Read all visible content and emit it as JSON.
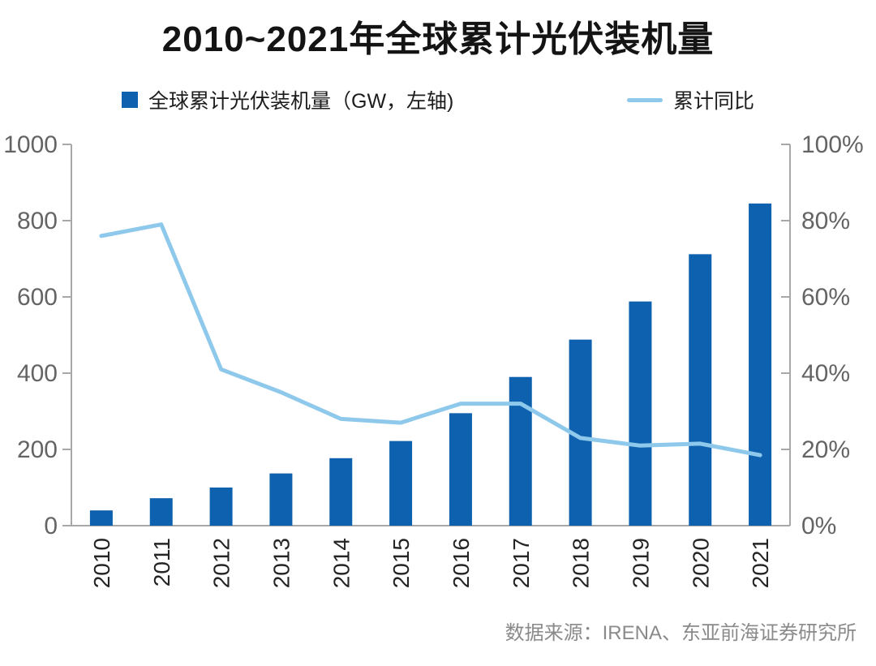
{
  "title": "2010~2021年全球累计光伏装机量",
  "legend": {
    "bars_label": "全球累计光伏装机量（GW，左轴)",
    "line_label": "累计同比"
  },
  "source": "数据来源：IRENA、东亚前海证券研究所",
  "colors": {
    "bar": "#0e61ae",
    "line": "#8ec9ec",
    "axis": "#a8a8a8",
    "axis_tick_label": "#646464",
    "x_label": "#242424",
    "title": "#141414",
    "source": "#8a8a8a"
  },
  "chart_data": {
    "type": "bar",
    "subtype": "bar+line combo, dual axis",
    "title": "2010~2021年全球累计光伏装机量",
    "categories": [
      "2010",
      "2011",
      "2012",
      "2013",
      "2014",
      "2015",
      "2016",
      "2017",
      "2018",
      "2019",
      "2020",
      "2021"
    ],
    "series": [
      {
        "name": "全球累计光伏装机量（GW，左轴)",
        "type": "bar",
        "axis": "left",
        "unit": "GW",
        "values": [
          40,
          72,
          100,
          137,
          177,
          222,
          295,
          390,
          488,
          588,
          712,
          845
        ]
      },
      {
        "name": "累计同比",
        "type": "line",
        "axis": "right",
        "unit": "%",
        "values": [
          76,
          79,
          41,
          35,
          28,
          27,
          32,
          32,
          23,
          21,
          21.5,
          18.5
        ]
      }
    ],
    "left_axis": {
      "min": 0,
      "max": 1000,
      "tick_values": [
        0,
        200,
        400,
        600,
        800,
        1000
      ],
      "tick_labels": [
        "0",
        "200",
        "400",
        "600",
        "800",
        "1000"
      ]
    },
    "right_axis": {
      "min": 0,
      "max": 100,
      "tick_values": [
        0,
        20,
        40,
        60,
        80,
        100
      ],
      "tick_labels": [
        "0%",
        "20%",
        "40%",
        "60%",
        "80%",
        "100%"
      ]
    },
    "grid": false,
    "legend_position": "top",
    "x_label_rotation": -90
  }
}
